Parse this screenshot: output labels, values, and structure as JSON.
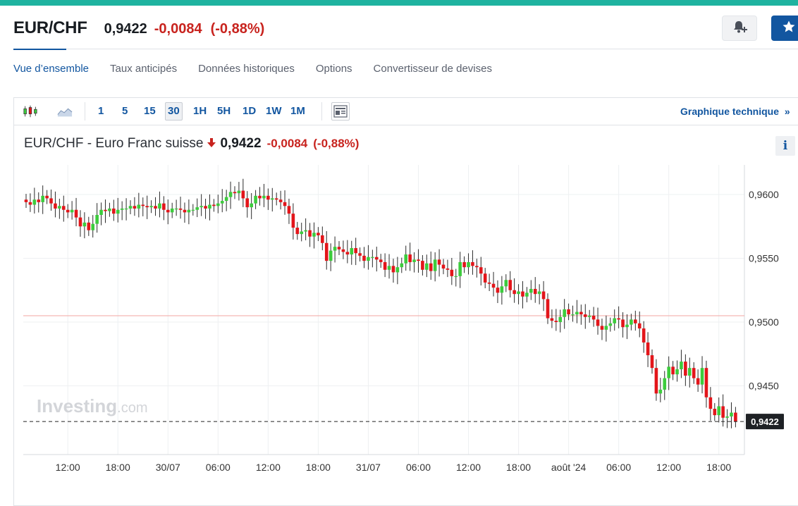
{
  "header": {
    "pair": "EUR/CHF",
    "price": "0,9422",
    "change": "-0,0084",
    "change_pct": "(-0,88%)"
  },
  "tabs": [
    "Vue d’ensemble",
    "Taux anticipés",
    "Données historiques",
    "Options",
    "Convertisseur de devises"
  ],
  "toolbar": {
    "timeframes": [
      "1",
      "5",
      "15",
      "30",
      "1H",
      "5H",
      "1D",
      "1W",
      "1M"
    ],
    "selected_timeframe": "30",
    "technical_link": "Graphique technique",
    "technical_chevron": "»"
  },
  "chart_title": {
    "name": "EUR/CHF - Euro Franc suisse",
    "price": "0,9422",
    "change": "-0,0084",
    "change_pct": "(-0,88%)"
  },
  "watermark": {
    "brand": "Investing",
    "suffix": ".com"
  },
  "info_label": "i",
  "colors": {
    "up": "#3ccc3c",
    "down": "#e3151a",
    "accent": "#1256a0",
    "top_bar": "#1fb3a0",
    "reference_line": "#f3a5a2"
  },
  "chart_data": {
    "type": "candlestick",
    "title": "EUR/CHF - Euro Franc suisse",
    "interval": "30",
    "ylim": [
      0.9385,
      0.9625
    ],
    "yticks": [
      0.96,
      0.955,
      0.95,
      0.945
    ],
    "ytick_labels": [
      "0,9600",
      "0,9550",
      "0,9500",
      "0,9450"
    ],
    "x_tick_labels": [
      "12:00",
      "18:00",
      "30/07",
      "06:00",
      "12:00",
      "18:00",
      "31/07",
      "06:00",
      "12:00",
      "18:00",
      "août '24",
      "06:00",
      "12:00",
      "18:00"
    ],
    "x_tick_index": [
      10,
      22,
      34,
      46,
      58,
      70,
      82,
      94,
      106,
      118,
      130,
      142,
      154,
      166
    ],
    "reference_level": 0.9505,
    "last_price": 0.9422,
    "last_price_label": "0,9422",
    "close": [
      0.9594,
      0.9592,
      0.9596,
      0.9594,
      0.9599,
      0.9597,
      0.9593,
      0.9589,
      0.9591,
      0.9588,
      0.9586,
      0.9588,
      0.9582,
      0.9575,
      0.9578,
      0.9572,
      0.9577,
      0.9584,
      0.9588,
      0.9587,
      0.9589,
      0.9585,
      0.9588,
      0.9589,
      0.9589,
      0.9591,
      0.9589,
      0.9592,
      0.9591,
      0.959,
      0.9591,
      0.9589,
      0.9593,
      0.9588,
      0.9586,
      0.9589,
      0.9589,
      0.9588,
      0.9586,
      0.9588,
      0.9588,
      0.959,
      0.9591,
      0.9589,
      0.9592,
      0.9591,
      0.9593,
      0.9595,
      0.9598,
      0.9602,
      0.9601,
      0.9603,
      0.9597,
      0.959,
      0.9593,
      0.9599,
      0.9597,
      0.9599,
      0.9596,
      0.9597,
      0.9596,
      0.9594,
      0.9591,
      0.9585,
      0.9574,
      0.9569,
      0.9571,
      0.9572,
      0.9567,
      0.957,
      0.9568,
      0.9562,
      0.9548,
      0.9556,
      0.9559,
      0.9557,
      0.9555,
      0.9553,
      0.9558,
      0.9554,
      0.9552,
      0.9548,
      0.9551,
      0.9551,
      0.9549,
      0.9547,
      0.9541,
      0.9544,
      0.9539,
      0.9543,
      0.9546,
      0.9553,
      0.9547,
      0.9549,
      0.9548,
      0.9541,
      0.9546,
      0.954,
      0.9549,
      0.9545,
      0.9542,
      0.9541,
      0.9536,
      0.9536,
      0.9547,
      0.9543,
      0.9547,
      0.9544,
      0.9543,
      0.9538,
      0.9531,
      0.953,
      0.9527,
      0.9523,
      0.9528,
      0.9533,
      0.9525,
      0.9522,
      0.9524,
      0.952,
      0.9523,
      0.9526,
      0.9522,
      0.9524,
      0.9518,
      0.9503,
      0.9501,
      0.95,
      0.9504,
      0.951,
      0.9506,
      0.9506,
      0.9508,
      0.9506,
      0.9504,
      0.9505,
      0.9502,
      0.9497,
      0.9494,
      0.9497,
      0.9499,
      0.9503,
      0.9502,
      0.9496,
      0.9498,
      0.9502,
      0.9499,
      0.9495,
      0.9484,
      0.9474,
      0.9464,
      0.9444,
      0.9447,
      0.9456,
      0.9465,
      0.9459,
      0.9463,
      0.9469,
      0.9458,
      0.9464,
      0.9456,
      0.9451,
      0.9464,
      0.9441,
      0.9432,
      0.9427,
      0.9434,
      0.9425,
      0.9426,
      0.9429,
      0.9422
    ]
  }
}
